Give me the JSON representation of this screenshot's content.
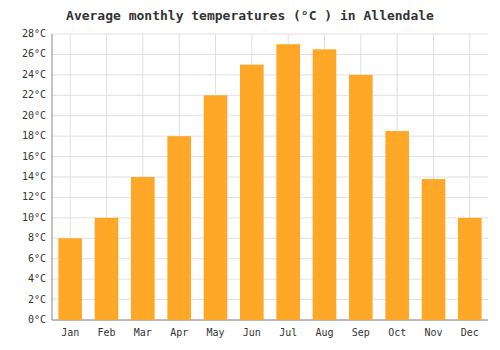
{
  "chart_data": {
    "type": "bar",
    "title": "Average monthly temperatures (°C ) in Allendale",
    "categories": [
      "Jan",
      "Feb",
      "Mar",
      "Apr",
      "May",
      "Jun",
      "Jul",
      "Aug",
      "Sep",
      "Oct",
      "Nov",
      "Dec"
    ],
    "values": [
      8,
      10,
      14,
      18,
      22,
      25,
      27,
      26.5,
      24,
      18.5,
      13.8,
      10
    ],
    "color": "#FFA726",
    "ylim": [
      0,
      28
    ],
    "yticks": [
      {
        "value": 0,
        "label": "0°C"
      },
      {
        "value": 2,
        "label": "2°C"
      },
      {
        "value": 4,
        "label": "4°C"
      },
      {
        "value": 6,
        "label": "6°C"
      },
      {
        "value": 8,
        "label": "8°C"
      },
      {
        "value": 10,
        "label": "10°C"
      },
      {
        "value": 12,
        "label": "12°C"
      },
      {
        "value": 14,
        "label": "14°C"
      },
      {
        "value": 16,
        "label": "16°C"
      },
      {
        "value": 18,
        "label": "18°C"
      },
      {
        "value": 20,
        "label": "20°C"
      },
      {
        "value": 22,
        "label": "22°C"
      },
      {
        "value": 24,
        "label": "24°C"
      },
      {
        "value": 26,
        "label": "26°C"
      },
      {
        "value": 28,
        "label": "28°C"
      }
    ],
    "grid": true
  }
}
